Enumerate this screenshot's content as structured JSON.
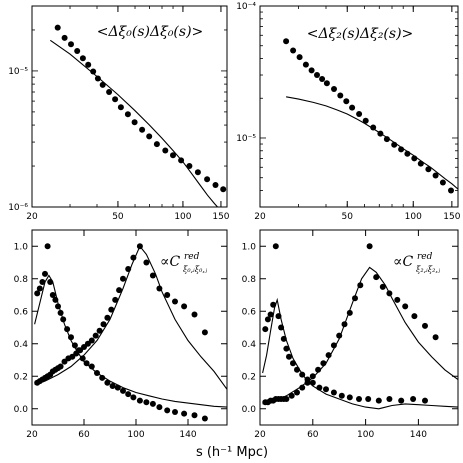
{
  "xlabel": "s (h⁻¹ Mpc)",
  "chart_data": [
    {
      "type": "scatter",
      "title": "<Δξ₀(s)Δξ₀(s)>",
      "xscale": "log",
      "yscale": "log",
      "xlim": [
        20,
        160
      ],
      "ylim": [
        1e-06,
        3e-05
      ],
      "xticks": [
        20,
        50,
        100,
        150
      ],
      "xtick_labels": [
        "20",
        "50",
        "100",
        "150"
      ],
      "yticks": [
        1e-05,
        1e-06
      ],
      "ytick_labels": [
        "10⁻⁵",
        "10⁻⁶"
      ],
      "series": [
        {
          "style": "points",
          "x": [
            26.3,
            28.3,
            30.3,
            32.4,
            34.4,
            36.4,
            38.4,
            40.4,
            42.5,
            45.5,
            48.5,
            51.6,
            55.6,
            59.7,
            64.7,
            69.8,
            75.8,
            82.9,
            90,
            98.1,
            107.2,
            117.3,
            129.4,
            141.5,
            153.7
          ],
          "y": [
            2.08e-05,
            1.75e-05,
            1.57e-05,
            1.4e-05,
            1.24e-05,
            1.11e-05,
            9.9e-06,
            8.8e-06,
            7.9e-06,
            7e-06,
            6.2e-06,
            5.4e-06,
            4.8e-06,
            4.2e-06,
            3.7e-06,
            3.3e-06,
            2.9e-06,
            2.6e-06,
            2.4e-06,
            2.2e-06,
            2e-06,
            1.8e-06,
            1.6e-06,
            1.45e-06,
            1.35e-06
          ]
        },
        {
          "style": "line",
          "x": [
            24.3,
            30,
            40,
            50,
            60,
            70,
            80,
            90,
            100,
            110,
            120,
            130,
            140,
            150
          ],
          "y": [
            1.68e-05,
            1.33e-05,
            9.1e-06,
            6.7e-06,
            5.1e-06,
            4e-06,
            3.2e-06,
            2.6e-06,
            2.15e-06,
            1.75e-06,
            1.45e-06,
            1.22e-06,
            1.06e-06,
            9.4e-07
          ]
        }
      ]
    },
    {
      "type": "scatter",
      "title": "<Δξ₂(s)Δξ₂(s)>",
      "xscale": "log",
      "yscale": "log",
      "xlim": [
        20,
        160
      ],
      "ylim": [
        3e-06,
        0.0001
      ],
      "xticks": [
        20,
        50,
        100,
        150
      ],
      "xtick_labels": [
        "20",
        "50",
        "100",
        "150"
      ],
      "yticks": [
        0.0001,
        1e-05
      ],
      "ytick_labels": [
        "10⁻⁴",
        "10⁻⁵"
      ],
      "series": [
        {
          "style": "points",
          "x": [
            26.3,
            28.3,
            30.3,
            32.4,
            34.4,
            36.4,
            38.4,
            40.4,
            43.5,
            46.5,
            49.5,
            52.6,
            56.6,
            60.7,
            65.7,
            70.8,
            75.8,
            81.9,
            88,
            94,
            101.1,
            108.2,
            117.3,
            126.4,
            136.5,
            148.6
          ],
          "y": [
            5.4e-05,
            4.6e-05,
            4.1e-05,
            3.6e-05,
            3.25e-05,
            3e-05,
            2.8e-05,
            2.6e-05,
            2.35e-05,
            2.1e-05,
            1.9e-05,
            1.7e-05,
            1.52e-05,
            1.35e-05,
            1.2e-05,
            1.08e-05,
            9.8e-06,
            8.9e-06,
            8.2e-06,
            7.6e-06,
            7e-06,
            6.4e-06,
            5.8e-06,
            5.2e-06,
            4.6e-06,
            4e-06
          ]
        },
        {
          "style": "line",
          "x": [
            26.3,
            30,
            35,
            40,
            45,
            50,
            55,
            60,
            70,
            80,
            90,
            100,
            110,
            120,
            130,
            140,
            150,
            160
          ],
          "y": [
            2.05e-05,
            1.97e-05,
            1.86e-05,
            1.75e-05,
            1.63e-05,
            1.52e-05,
            1.4e-05,
            1.29e-05,
            1.1e-05,
            9.5e-06,
            8.3e-06,
            7.4e-06,
            6.6e-06,
            6e-06,
            5.4e-06,
            4.9e-06,
            4.5e-06,
            4.1e-06
          ]
        }
      ]
    },
    {
      "type": "scatter",
      "title": "∝C^red_{ξ0,i ξ0,j}",
      "xscale": "linear",
      "yscale": "linear",
      "xlim": [
        20,
        170
      ],
      "ylim": [
        -0.1,
        1.1
      ],
      "xticks": [
        20,
        60,
        100,
        140
      ],
      "xtick_labels": [
        "20",
        "60",
        "100",
        "140"
      ],
      "yticks": [
        0.0,
        0.2,
        0.4,
        0.6,
        0.8,
        1.0
      ],
      "ytick_labels": [
        "0.0",
        "0.2",
        "0.4",
        "0.6",
        "0.8",
        "1.0"
      ],
      "series": [
        {
          "style": "points",
          "x": [
            24,
            26,
            28,
            30,
            32,
            34,
            36,
            38,
            40,
            42,
            44,
            47,
            50,
            53,
            56,
            59,
            62,
            66,
            70,
            74,
            78,
            82,
            86,
            90,
            94,
            98,
            103,
            108,
            113,
            118,
            124,
            130,
            137,
            145,
            153
          ],
          "y": [
            0.71,
            0.74,
            0.78,
            0.83,
            1.0,
            0.78,
            0.7,
            0.67,
            0.63,
            0.59,
            0.55,
            0.49,
            0.44,
            0.39,
            0.36,
            0.31,
            0.28,
            0.26,
            0.22,
            0.19,
            0.16,
            0.14,
            0.13,
            0.11,
            0.09,
            0.07,
            0.05,
            0.04,
            0.03,
            0.01,
            -0.01,
            -0.02,
            -0.03,
            -0.04,
            -0.06
          ]
        },
        {
          "style": "points",
          "x": [
            24,
            26,
            28,
            30,
            32,
            34,
            36,
            38,
            40,
            42,
            45,
            48,
            51,
            54,
            57,
            60,
            63,
            66,
            69,
            72,
            75,
            78,
            81,
            84,
            87,
            90,
            94,
            98,
            103,
            108,
            113,
            118,
            124,
            130,
            137,
            145,
            153
          ],
          "y": [
            0.16,
            0.17,
            0.18,
            0.19,
            0.2,
            0.21,
            0.23,
            0.24,
            0.25,
            0.26,
            0.29,
            0.31,
            0.32,
            0.34,
            0.36,
            0.38,
            0.4,
            0.42,
            0.45,
            0.48,
            0.52,
            0.56,
            0.61,
            0.67,
            0.73,
            0.8,
            0.86,
            0.93,
            1.0,
            0.9,
            0.82,
            0.74,
            0.7,
            0.66,
            0.63,
            0.58,
            0.47
          ]
        },
        {
          "style": "line",
          "x": [
            22,
            26,
            30,
            33,
            36,
            40,
            45,
            50,
            55,
            60,
            70,
            80,
            90,
            100,
            110,
            120,
            130,
            140,
            150,
            160,
            170
          ],
          "y": [
            0.52,
            0.65,
            0.78,
            0.82,
            0.78,
            0.65,
            0.52,
            0.42,
            0.35,
            0.29,
            0.22,
            0.17,
            0.13,
            0.1,
            0.08,
            0.06,
            0.045,
            0.035,
            0.025,
            0.015,
            0.01
          ]
        },
        {
          "style": "line",
          "x": [
            22,
            30,
            40,
            50,
            60,
            70,
            80,
            90,
            97,
            103,
            108,
            115,
            120,
            130,
            140,
            150,
            160,
            170
          ],
          "y": [
            0.15,
            0.17,
            0.21,
            0.26,
            0.33,
            0.42,
            0.55,
            0.74,
            0.89,
            1.0,
            0.95,
            0.83,
            0.72,
            0.55,
            0.42,
            0.32,
            0.23,
            0.12
          ]
        }
      ]
    },
    {
      "type": "scatter",
      "title": "∝C^red_{ξ2,i ξ2,j}",
      "xscale": "linear",
      "yscale": "linear",
      "xlim": [
        20,
        170
      ],
      "ylim": [
        -0.1,
        1.1
      ],
      "xticks": [
        20,
        60,
        100,
        140
      ],
      "xtick_labels": [
        "20",
        "60",
        "100",
        "140"
      ],
      "yticks": [
        0.0,
        0.2,
        0.4,
        0.6,
        0.8,
        1.0
      ],
      "ytick_labels": [
        "0.0",
        "0.2",
        "0.4",
        "0.6",
        "0.8",
        "1.0"
      ],
      "series": [
        {
          "style": "points",
          "x": [
            24,
            26,
            28,
            30,
            32,
            34,
            36,
            38,
            40,
            42,
            45,
            48,
            52,
            56,
            60,
            65,
            70,
            76,
            82,
            88,
            95,
            102,
            110,
            118,
            127,
            136,
            145
          ],
          "y": [
            0.49,
            0.55,
            0.58,
            0.64,
            1.0,
            0.57,
            0.5,
            0.43,
            0.37,
            0.32,
            0.28,
            0.24,
            0.21,
            0.18,
            0.16,
            0.13,
            0.12,
            0.1,
            0.08,
            0.07,
            0.06,
            0.06,
            0.05,
            0.06,
            0.05,
            0.06,
            0.05
          ]
        },
        {
          "style": "points",
          "x": [
            24,
            26,
            28,
            30,
            32,
            34,
            36,
            38,
            40,
            44,
            48,
            52,
            56,
            60,
            64,
            68,
            72,
            76,
            80,
            84,
            88,
            92,
            96,
            103,
            108,
            113,
            118,
            124,
            130,
            137,
            145,
            153
          ],
          "y": [
            0.04,
            0.04,
            0.05,
            0.05,
            0.06,
            0.06,
            0.06,
            0.06,
            0.06,
            0.08,
            0.1,
            0.13,
            0.16,
            0.2,
            0.24,
            0.28,
            0.33,
            0.39,
            0.45,
            0.52,
            0.59,
            0.68,
            0.76,
            1.0,
            0.81,
            0.75,
            0.71,
            0.67,
            0.63,
            0.57,
            0.51,
            0.44
          ]
        },
        {
          "style": "line",
          "x": [
            22,
            25,
            28,
            31,
            33,
            36,
            40,
            45,
            50,
            55,
            60,
            70,
            80,
            90,
            100,
            110,
            120,
            130,
            140,
            150,
            160,
            170
          ],
          "y": [
            0.22,
            0.33,
            0.48,
            0.62,
            0.67,
            0.55,
            0.42,
            0.31,
            0.24,
            0.18,
            0.14,
            0.09,
            0.06,
            0.03,
            0.01,
            0.0,
            0.02,
            0.03,
            0.025,
            0.02,
            0.015,
            0.01
          ]
        },
        {
          "style": "line",
          "x": [
            22,
            30,
            40,
            50,
            60,
            70,
            80,
            90,
            97,
            103,
            108,
            115,
            120,
            130,
            140,
            150,
            160,
            170
          ],
          "y": [
            0.03,
            0.04,
            0.08,
            0.13,
            0.19,
            0.28,
            0.43,
            0.65,
            0.8,
            0.87,
            0.84,
            0.76,
            0.68,
            0.53,
            0.41,
            0.32,
            0.24,
            0.18
          ]
        }
      ]
    }
  ]
}
